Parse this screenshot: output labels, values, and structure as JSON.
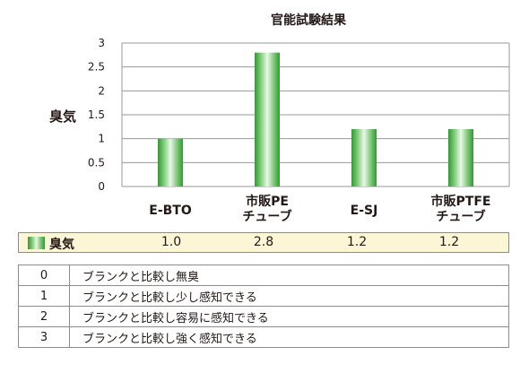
{
  "chart_data": {
    "type": "bar",
    "title": "官能試験結果",
    "ylabel": "臭気",
    "xlabel": "",
    "ylim": [
      0,
      3
    ],
    "yticks": [
      "0",
      "0.5",
      "1",
      "1.5",
      "2",
      "2.5",
      "3"
    ],
    "grid": true,
    "categories": [
      [
        "E-BTO"
      ],
      [
        "市販PE",
        "チューブ"
      ],
      [
        "E-SJ"
      ],
      [
        "市販PTFE",
        "チューブ"
      ]
    ],
    "series": [
      {
        "name": "臭気",
        "values": [
          1.0,
          2.8,
          1.2,
          1.2
        ],
        "color": "#3aa83a"
      }
    ]
  },
  "data_row": {
    "label": "臭気",
    "values": [
      "1.0",
      "2.8",
      "1.2",
      "1.2"
    ]
  },
  "legend": [
    {
      "level": "0",
      "description": "ブランクと比較し無臭"
    },
    {
      "level": "1",
      "description": "ブランクと比較し少し感知できる"
    },
    {
      "level": "2",
      "description": "ブランクと比較し容易に感知できる"
    },
    {
      "level": "3",
      "description": "ブランクと比較し強く感知できる"
    }
  ]
}
